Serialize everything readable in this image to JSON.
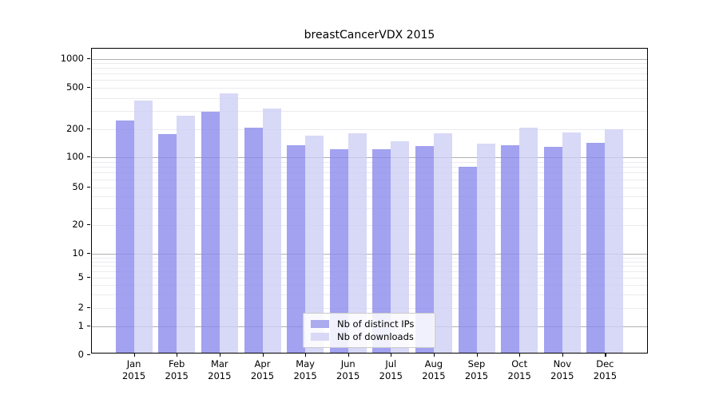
{
  "title": "breastCancerVDX 2015",
  "legend": {
    "items": [
      {
        "label": "Nb of distinct IPs",
        "color": "#aaaaee"
      },
      {
        "label": "Nb of downloads",
        "color": "#d9d9f6"
      }
    ]
  },
  "chart_data": {
    "type": "bar",
    "title": "breastCancerVDX 2015",
    "categories": [
      "Jan",
      "Feb",
      "Mar",
      "Apr",
      "May",
      "Jun",
      "Jul",
      "Aug",
      "Sep",
      "Oct",
      "Nov",
      "Dec"
    ],
    "year": "2015",
    "series": [
      {
        "name": "Nb of distinct IPs",
        "color_rgba": "rgba(139,139,236,0.8)",
        "values": [
          233,
          170,
          282,
          200,
          128,
          116,
          118,
          126,
          77,
          130,
          124,
          136
        ]
      },
      {
        "name": "Nb of downloads",
        "color_rgba": "rgba(206,206,245,0.8)",
        "values": [
          366,
          257,
          424,
          305,
          162,
          174,
          143,
          172,
          135,
          200,
          176,
          191
        ]
      }
    ],
    "xlabel": "",
    "ylabel": "",
    "y_axis": {
      "scale": "log-like with 0 baseline",
      "tick_labels": [
        1000,
        500,
        200,
        100,
        50,
        20,
        10,
        5,
        2,
        1,
        0
      ],
      "major_gridlines": [
        1,
        10,
        100,
        1000
      ],
      "minor_gridlines": [
        2,
        3,
        4,
        5,
        6,
        7,
        8,
        9,
        20,
        30,
        40,
        50,
        60,
        70,
        80,
        90,
        200,
        300,
        400,
        500,
        600,
        700,
        800,
        900
      ]
    },
    "grid": "on",
    "legend_position": "lower-center"
  }
}
